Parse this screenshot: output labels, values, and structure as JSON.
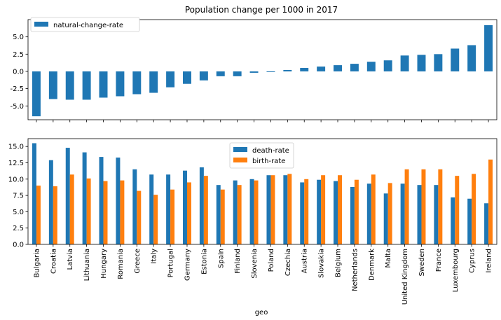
{
  "chart_data": [
    {
      "type": "bar",
      "title": "Population change per 1000 in 2017",
      "xlabel": "",
      "ylabel": "",
      "ylim": [
        -7,
        7.5
      ],
      "yticks": [
        "5.0",
        "2.5",
        "0.0",
        "-2.5",
        "-5.0"
      ],
      "ytick_values": [
        5.0,
        2.5,
        0.0,
        -2.5,
        -5.0
      ],
      "categories": [
        "Bulgaria",
        "Croatia",
        "Latvia",
        "Lithuania",
        "Hungary",
        "Romania",
        "Greece",
        "Italy",
        "Portugal",
        "Germany",
        "Estonia",
        "Spain",
        "Finland",
        "Slovenia",
        "Poland",
        "Czechia",
        "Austria",
        "Slovakia",
        "Belgium",
        "Netherlands",
        "Denmark",
        "Malta",
        "United Kingdom",
        "Sweden",
        "France",
        "Luxembourg",
        "Cyprus",
        "Ireland"
      ],
      "series": [
        {
          "name": "natural-change-rate",
          "color": "#1f77b4",
          "values": [
            -6.5,
            -4.0,
            -4.1,
            -4.1,
            -3.8,
            -3.6,
            -3.3,
            -3.1,
            -2.3,
            -1.8,
            -1.3,
            -0.7,
            -0.7,
            -0.2,
            -0.1,
            0.2,
            0.5,
            0.7,
            0.9,
            1.1,
            1.4,
            1.6,
            2.3,
            2.4,
            2.5,
            3.3,
            3.8,
            6.7
          ]
        }
      ],
      "legend": "upper-left"
    },
    {
      "type": "bar",
      "title": "",
      "xlabel": "geo",
      "ylabel": "",
      "ylim": [
        0,
        16.2
      ],
      "yticks": [
        "0.0",
        "2.5",
        "5.0",
        "7.5",
        "10.0",
        "12.5",
        "15.0"
      ],
      "ytick_values": [
        0.0,
        2.5,
        5.0,
        7.5,
        10.0,
        12.5,
        15.0
      ],
      "categories": [
        "Bulgaria",
        "Croatia",
        "Latvia",
        "Lithuania",
        "Hungary",
        "Romania",
        "Greece",
        "Italy",
        "Portugal",
        "Germany",
        "Estonia",
        "Spain",
        "Finland",
        "Slovenia",
        "Poland",
        "Czechia",
        "Austria",
        "Slovakia",
        "Belgium",
        "Netherlands",
        "Denmark",
        "Malta",
        "United Kingdom",
        "Sweden",
        "France",
        "Luxembourg",
        "Cyprus",
        "Ireland"
      ],
      "series": [
        {
          "name": "death-rate",
          "color": "#1f77b4",
          "values": [
            15.5,
            12.9,
            14.8,
            14.1,
            13.4,
            13.3,
            11.5,
            10.7,
            10.7,
            11.3,
            11.8,
            9.1,
            9.8,
            10.0,
            10.6,
            10.6,
            9.5,
            9.9,
            9.7,
            8.8,
            9.3,
            7.8,
            9.3,
            9.1,
            9.1,
            7.2,
            7.0,
            6.3
          ]
        },
        {
          "name": "birth-rate",
          "color": "#ff7f0e",
          "values": [
            9.0,
            8.9,
            10.7,
            10.1,
            9.7,
            9.8,
            8.2,
            7.6,
            8.4,
            9.5,
            10.5,
            8.4,
            9.1,
            9.8,
            10.6,
            10.8,
            10.0,
            10.6,
            10.6,
            9.9,
            10.7,
            9.4,
            11.5,
            11.5,
            11.5,
            10.5,
            10.8,
            13.0
          ]
        }
      ],
      "legend": "upper-center"
    }
  ]
}
